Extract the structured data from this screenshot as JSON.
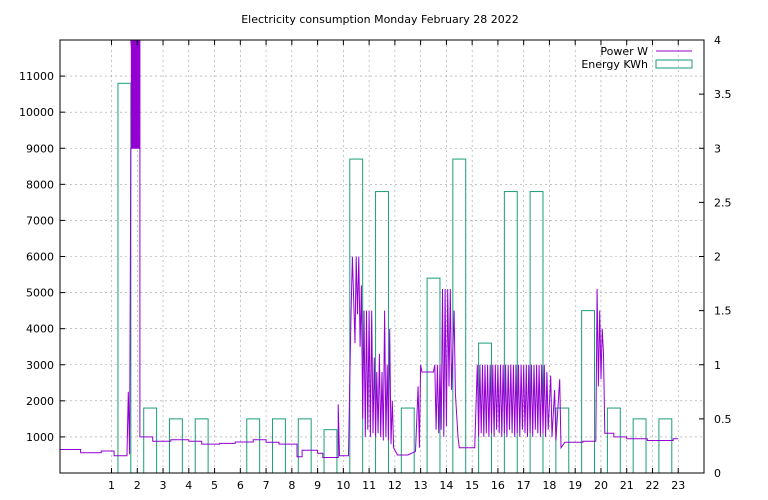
{
  "chart_data": {
    "type": "bar+line",
    "title": "Electricity consumption Monday February 28 2022",
    "x_ticks": [
      1,
      2,
      3,
      4,
      5,
      6,
      7,
      8,
      9,
      10,
      11,
      12,
      13,
      14,
      15,
      16,
      17,
      18,
      19,
      20,
      21,
      22,
      23
    ],
    "xlim": [
      -1,
      24
    ],
    "y_left": {
      "ylim": [
        0,
        12000
      ],
      "ticks": [
        1000,
        2000,
        3000,
        4000,
        5000,
        6000,
        7000,
        8000,
        9000,
        10000,
        11000
      ]
    },
    "y_right": {
      "ylim": [
        0,
        4
      ],
      "ticks": [
        "0",
        "0.5",
        "1",
        "1.5",
        "2",
        "2.5",
        "3",
        "3.5",
        "4"
      ]
    },
    "grid": true,
    "legend": {
      "placement": "top-right",
      "entries": [
        "Power W",
        "Energy KWh"
      ]
    },
    "series": [
      {
        "name": "Energy KWh",
        "kind": "bar",
        "color": "#1a9e7a",
        "axis": "right",
        "x": [
          0,
          1,
          2,
          3,
          4,
          5,
          6,
          7,
          8,
          9,
          10,
          11,
          12,
          13,
          14,
          15,
          16,
          17,
          18,
          19,
          20,
          21,
          22,
          23
        ],
        "values": [
          0,
          3.6,
          0.6,
          0.5,
          0.5,
          0,
          0.5,
          0.5,
          0.5,
          0.4,
          2.9,
          2.6,
          0.6,
          1.8,
          2.9,
          1.2,
          2.6,
          2.6,
          0.6,
          1.5,
          0.6,
          0.5,
          0.5,
          0
        ]
      },
      {
        "name": "Power W",
        "kind": "line",
        "color": "#9400d3",
        "axis": "left",
        "points": [
          [
            -1,
            650
          ],
          [
            -0.2,
            650
          ],
          [
            -0.2,
            560
          ],
          [
            0.6,
            560
          ],
          [
            0.6,
            610
          ],
          [
            1.1,
            610
          ],
          [
            1.1,
            480
          ],
          [
            1.6,
            480
          ],
          [
            1.6,
            520
          ],
          [
            1.65,
            2250
          ],
          [
            1.7,
            520
          ],
          [
            1.75,
            9000
          ],
          [
            2.1,
            9000
          ],
          [
            2.1,
            12000
          ],
          [
            1.75,
            12000
          ],
          [
            2.1,
            9000
          ],
          [
            2.1,
            1000
          ],
          [
            2.6,
            1000
          ],
          [
            2.6,
            880
          ],
          [
            3.3,
            880
          ],
          [
            3.3,
            920
          ],
          [
            4,
            920
          ],
          [
            4,
            880
          ],
          [
            4.5,
            880
          ],
          [
            4.5,
            800
          ],
          [
            5.2,
            800
          ],
          [
            5.2,
            820
          ],
          [
            5.8,
            820
          ],
          [
            5.8,
            860
          ],
          [
            6.5,
            860
          ],
          [
            6.5,
            920
          ],
          [
            7,
            920
          ],
          [
            7,
            850
          ],
          [
            7.5,
            850
          ],
          [
            7.5,
            800
          ],
          [
            8.2,
            800
          ],
          [
            8.2,
            450
          ],
          [
            8.4,
            450
          ],
          [
            8.4,
            630
          ],
          [
            9,
            630
          ],
          [
            9,
            550
          ],
          [
            9.2,
            550
          ],
          [
            9.2,
            430
          ],
          [
            9.8,
            430
          ],
          [
            9.8,
            1900
          ],
          [
            9.85,
            480
          ],
          [
            10.2,
            480
          ],
          [
            10.25,
            2600
          ],
          [
            10.3,
            4500
          ],
          [
            10.35,
            6000
          ],
          [
            10.45,
            3600
          ],
          [
            10.5,
            6000
          ],
          [
            10.55,
            4400
          ],
          [
            10.6,
            6000
          ],
          [
            10.65,
            3500
          ],
          [
            10.7,
            5200
          ],
          [
            10.75,
            1500
          ],
          [
            10.8,
            4500
          ],
          [
            10.85,
            1000
          ],
          [
            10.9,
            4500
          ],
          [
            10.95,
            1200
          ],
          [
            11,
            4500
          ],
          [
            11.05,
            1000
          ],
          [
            11.1,
            4500
          ],
          [
            11.15,
            1100
          ],
          [
            11.2,
            3200
          ],
          [
            11.25,
            1000
          ],
          [
            11.3,
            2800
          ],
          [
            11.35,
            1100
          ],
          [
            11.4,
            3300
          ],
          [
            11.45,
            1000
          ],
          [
            11.5,
            2800
          ],
          [
            11.55,
            900
          ],
          [
            11.6,
            4500
          ],
          [
            11.65,
            1000
          ],
          [
            11.7,
            3000
          ],
          [
            11.75,
            900
          ],
          [
            11.8,
            4000
          ],
          [
            11.85,
            800
          ],
          [
            11.9,
            2000
          ],
          [
            11.95,
            700
          ],
          [
            12.1,
            500
          ],
          [
            12.5,
            500
          ],
          [
            12.8,
            600
          ],
          [
            12.9,
            2400
          ],
          [
            12.95,
            700
          ],
          [
            13,
            3000
          ],
          [
            13.05,
            2800
          ],
          [
            13.5,
            2800
          ],
          [
            13.55,
            3000
          ],
          [
            13.6,
            1200
          ],
          [
            13.65,
            3000
          ],
          [
            13.7,
            1100
          ],
          [
            13.75,
            3000
          ],
          [
            13.8,
            1200
          ],
          [
            13.85,
            5100
          ],
          [
            13.9,
            1000
          ],
          [
            13.95,
            5100
          ],
          [
            14,
            1300
          ],
          [
            14.05,
            5100
          ],
          [
            14.1,
            2400
          ],
          [
            14.15,
            5100
          ],
          [
            14.2,
            2300
          ],
          [
            14.3,
            4500
          ],
          [
            14.35,
            2200
          ],
          [
            14.45,
            1000
          ],
          [
            14.5,
            700
          ],
          [
            15.1,
            700
          ],
          [
            15.2,
            3000
          ],
          [
            15.25,
            1000
          ],
          [
            15.3,
            3000
          ],
          [
            15.35,
            1100
          ],
          [
            15.4,
            3000
          ],
          [
            15.45,
            1000
          ],
          [
            15.5,
            3000
          ],
          [
            15.55,
            1100
          ],
          [
            15.6,
            3000
          ],
          [
            15.65,
            1000
          ],
          [
            15.7,
            3000
          ],
          [
            15.75,
            1100
          ],
          [
            15.8,
            3000
          ],
          [
            15.85,
            1000
          ],
          [
            15.9,
            3000
          ],
          [
            15.95,
            1200
          ],
          [
            16,
            3000
          ],
          [
            16.05,
            1100
          ],
          [
            16.1,
            3000
          ],
          [
            16.15,
            1000
          ],
          [
            16.2,
            3000
          ],
          [
            16.25,
            1100
          ],
          [
            16.3,
            3000
          ],
          [
            16.35,
            1000
          ],
          [
            16.4,
            3000
          ],
          [
            16.45,
            1200
          ],
          [
            16.5,
            3000
          ],
          [
            16.55,
            1100
          ],
          [
            16.6,
            3000
          ],
          [
            16.65,
            1000
          ],
          [
            16.7,
            3000
          ],
          [
            16.75,
            1100
          ],
          [
            16.8,
            3000
          ],
          [
            16.85,
            1000
          ],
          [
            16.9,
            3000
          ],
          [
            16.95,
            1200
          ],
          [
            17,
            3000
          ],
          [
            17.05,
            1100
          ],
          [
            17.1,
            3000
          ],
          [
            17.15,
            1000
          ],
          [
            17.2,
            3000
          ],
          [
            17.25,
            1100
          ],
          [
            17.3,
            3000
          ],
          [
            17.35,
            1000
          ],
          [
            17.4,
            3000
          ],
          [
            17.45,
            1200
          ],
          [
            17.5,
            3000
          ],
          [
            17.55,
            1100
          ],
          [
            17.6,
            3000
          ],
          [
            17.65,
            1000
          ],
          [
            17.7,
            3000
          ],
          [
            17.75,
            1100
          ],
          [
            17.8,
            3000
          ],
          [
            17.85,
            1000
          ],
          [
            17.9,
            2800
          ],
          [
            17.95,
            1200
          ],
          [
            18.05,
            2700
          ],
          [
            18.1,
            1000
          ],
          [
            18.2,
            2300
          ],
          [
            18.25,
            900
          ],
          [
            18.4,
            2600
          ],
          [
            18.45,
            700
          ],
          [
            18.6,
            850
          ],
          [
            19.3,
            850
          ],
          [
            19.3,
            880
          ],
          [
            19.8,
            880
          ],
          [
            19.85,
            5100
          ],
          [
            19.9,
            2400
          ],
          [
            19.95,
            4500
          ],
          [
            20,
            2600
          ],
          [
            20.05,
            4000
          ],
          [
            20.1,
            3300
          ],
          [
            20.15,
            1100
          ],
          [
            20.5,
            1100
          ],
          [
            20.5,
            1000
          ],
          [
            21,
            1000
          ],
          [
            21,
            950
          ],
          [
            21.8,
            950
          ],
          [
            21.8,
            900
          ],
          [
            22.8,
            900
          ],
          [
            22.8,
            950
          ],
          [
            23,
            950
          ]
        ]
      }
    ]
  }
}
